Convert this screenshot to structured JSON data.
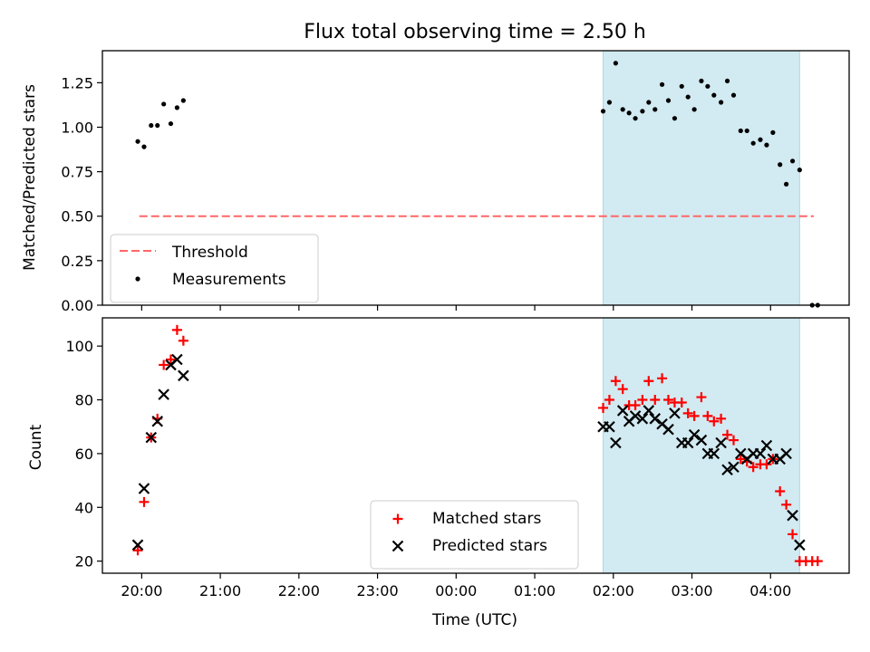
{
  "chart_data": [
    {
      "type": "scatter",
      "title": "Flux total observing time = 2.50 h",
      "ylabel": "Matched/Predicted stars",
      "xlabel": "",
      "x_axis": "time_utc_hours_continuous",
      "xlim": [
        19.5,
        29.0
      ],
      "ylim": [
        0.0,
        1.43
      ],
      "yticks": [
        0.0,
        0.25,
        0.5,
        0.75,
        1.0,
        1.25
      ],
      "ytick_labels": [
        "0.00",
        "0.25",
        "0.50",
        "0.75",
        "1.00",
        "1.25"
      ],
      "xtick_values": [
        20,
        21,
        22,
        23,
        24,
        25,
        26,
        27,
        28
      ],
      "xtick_labels": [],
      "shaded_span": {
        "x": [
          25.87,
          28.37
        ],
        "color": "#add8e6"
      },
      "threshold": {
        "name": "Threshold",
        "y": 0.5,
        "x": [
          19.97,
          28.55
        ],
        "color": "#ff6666",
        "style": "dashed"
      },
      "legend": {
        "position": "lower-left",
        "entries": [
          "Threshold",
          "Measurements"
        ]
      },
      "series": [
        {
          "name": "Measurements",
          "marker": "dot",
          "color": "#000000",
          "x": [
            19.95,
            20.03,
            20.12,
            20.2,
            20.28,
            20.37,
            20.45,
            20.53,
            25.87,
            25.95,
            26.03,
            26.12,
            26.2,
            26.28,
            26.37,
            26.45,
            26.53,
            26.62,
            26.7,
            26.78,
            26.87,
            26.95,
            27.03,
            27.12,
            27.2,
            27.28,
            27.37,
            27.45,
            27.53,
            27.62,
            27.7,
            27.78,
            27.87,
            27.95,
            28.03,
            28.12,
            28.2,
            28.28,
            28.37,
            28.53,
            28.6
          ],
          "y": [
            0.92,
            0.89,
            1.01,
            1.01,
            1.13,
            1.02,
            1.11,
            1.15,
            1.09,
            1.14,
            1.36,
            1.1,
            1.08,
            1.05,
            1.09,
            1.14,
            1.1,
            1.24,
            1.15,
            1.05,
            1.23,
            1.17,
            1.1,
            1.26,
            1.23,
            1.18,
            1.14,
            1.26,
            1.18,
            0.98,
            0.98,
            0.91,
            0.93,
            0.9,
            0.97,
            0.79,
            0.68,
            0.81,
            0.76,
            0.0,
            0.0
          ]
        }
      ]
    },
    {
      "type": "scatter",
      "title": "",
      "ylabel": "Count",
      "xlabel": "Time (UTC)",
      "x_axis": "time_utc_hours_continuous",
      "xlim": [
        19.5,
        29.0
      ],
      "ylim": [
        15.5,
        110.5
      ],
      "yticks": [
        20,
        40,
        60,
        80,
        100
      ],
      "ytick_labels": [
        "20",
        "40",
        "60",
        "80",
        "100"
      ],
      "xtick_values": [
        20,
        21,
        22,
        23,
        24,
        25,
        26,
        27,
        28
      ],
      "xtick_labels": [
        "20:00",
        "21:00",
        "22:00",
        "23:00",
        "00:00",
        "01:00",
        "02:00",
        "03:00",
        "04:00"
      ],
      "shaded_span": {
        "x": [
          25.87,
          28.37
        ],
        "color": "#add8e6"
      },
      "legend": {
        "position": "lower-center",
        "entries": [
          "Matched stars",
          "Predicted stars"
        ]
      },
      "series": [
        {
          "name": "Matched stars",
          "marker": "plus",
          "color": "#ff0000",
          "x": [
            19.95,
            20.03,
            20.12,
            20.2,
            20.28,
            20.37,
            20.45,
            20.53,
            25.87,
            25.95,
            26.03,
            26.12,
            26.2,
            26.28,
            26.37,
            26.45,
            26.53,
            26.62,
            26.7,
            26.78,
            26.87,
            26.95,
            27.03,
            27.12,
            27.2,
            27.28,
            27.37,
            27.45,
            27.53,
            27.62,
            27.7,
            27.78,
            27.87,
            27.95,
            28.03,
            28.12,
            28.2,
            28.28,
            28.37,
            28.45,
            28.53,
            28.6
          ],
          "y": [
            24,
            42,
            66,
            73,
            93,
            95,
            106,
            102,
            77,
            80,
            87,
            84,
            78,
            78,
            80,
            87,
            80,
            88,
            80,
            79,
            79,
            75,
            74,
            81,
            74,
            72,
            73,
            67,
            65,
            58,
            57,
            55,
            56,
            56,
            58,
            46,
            41,
            30,
            20,
            20,
            20,
            20
          ],
          "x_display_note": ""
        },
        {
          "name": "Predicted stars",
          "marker": "x",
          "color": "#000000",
          "x": [
            19.95,
            20.03,
            20.12,
            20.2,
            20.28,
            20.37,
            20.45,
            20.53,
            25.87,
            25.95,
            26.03,
            26.12,
            26.2,
            26.28,
            26.37,
            26.45,
            26.53,
            26.62,
            26.7,
            26.78,
            26.87,
            26.95,
            27.03,
            27.12,
            27.2,
            27.28,
            27.37,
            27.45,
            27.53,
            27.62,
            27.7,
            27.78,
            27.87,
            27.95,
            28.03,
            28.12,
            28.2,
            28.28,
            28.37
          ],
          "y": [
            26,
            47,
            66,
            72,
            82,
            93,
            95,
            89,
            70,
            70,
            64,
            76,
            72,
            74,
            73,
            76,
            73,
            71,
            69,
            75,
            64,
            64,
            67,
            65,
            60,
            60,
            64,
            54,
            55,
            60,
            58,
            60,
            60,
            63,
            58,
            58,
            60,
            37,
            26
          ]
        }
      ]
    }
  ]
}
